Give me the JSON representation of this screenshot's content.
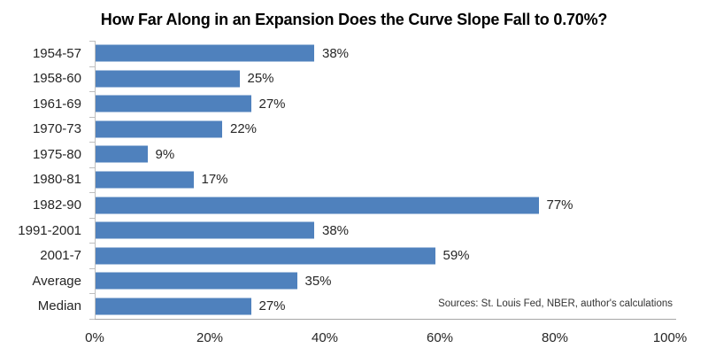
{
  "title": "How Far Along in an Expansion Does the Curve Slope Fall to 0.70%?",
  "source_note": "Sources: St. Louis Fed, NBER, author's calculations",
  "colors": {
    "bar": "#4F81BD",
    "axis": "#BFBFBF",
    "axis_bottom": "#A6A6A6",
    "text": "#262626",
    "title_text": "#000000"
  },
  "chart_data": {
    "type": "bar",
    "orientation": "horizontal",
    "title": "How Far Along in an Expansion Does the Curve Slope Fall to 0.70%?",
    "categories": [
      "1954-57",
      "1958-60",
      "1961-69",
      "1970-73",
      "1975-80",
      "1980-81",
      "1982-90",
      "1991-2001",
      "2001-7",
      "Average",
      "Median"
    ],
    "values": [
      38,
      25,
      27,
      22,
      9,
      17,
      77,
      38,
      59,
      35,
      27
    ],
    "value_labels": [
      "38%",
      "25%",
      "27%",
      "22%",
      "9%",
      "17%",
      "77%",
      "38%",
      "59%",
      "35%",
      "27%"
    ],
    "xlabel": "",
    "ylabel": "",
    "xlim": [
      0,
      100
    ],
    "x_ticks": [
      "0%",
      "20%",
      "40%",
      "60%",
      "80%",
      "100%"
    ],
    "grid": false,
    "legend": false,
    "annotations": [
      "Sources: St. Louis Fed, NBER, author's calculations"
    ]
  }
}
